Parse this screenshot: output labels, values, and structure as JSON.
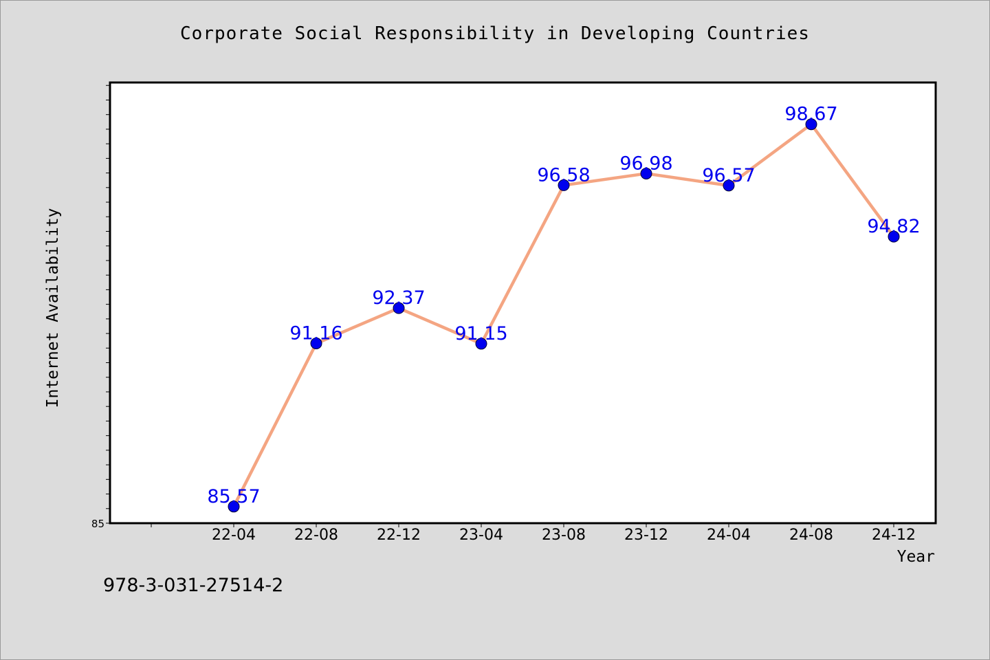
{
  "title": "Corporate Social Responsibility in Developing Countries",
  "footer_code": "978-3-031-27514-2",
  "chart_data": {
    "type": "line",
    "title": "Corporate Social Responsibility in Developing Countries",
    "xlabel": "Year",
    "ylabel": "Internet Availability",
    "categories": [
      "22-04",
      "22-08",
      "22-12",
      "23-04",
      "23-08",
      "23-12",
      "24-04",
      "24-08",
      "24-12"
    ],
    "series": [
      {
        "values": [
          85.57,
          91.16,
          92.37,
          91.15,
          96.58,
          96.98,
          96.57,
          98.67,
          94.82
        ]
      }
    ],
    "ytick_labels": [
      "85"
    ],
    "ylim": [
      85,
      100.1
    ],
    "grid": false,
    "line_color": "#f4a582",
    "marker_color": "#0000ee",
    "label_color": "#0000ee",
    "background_color": "#dcdcdc",
    "plot_background": "#ffffff"
  }
}
